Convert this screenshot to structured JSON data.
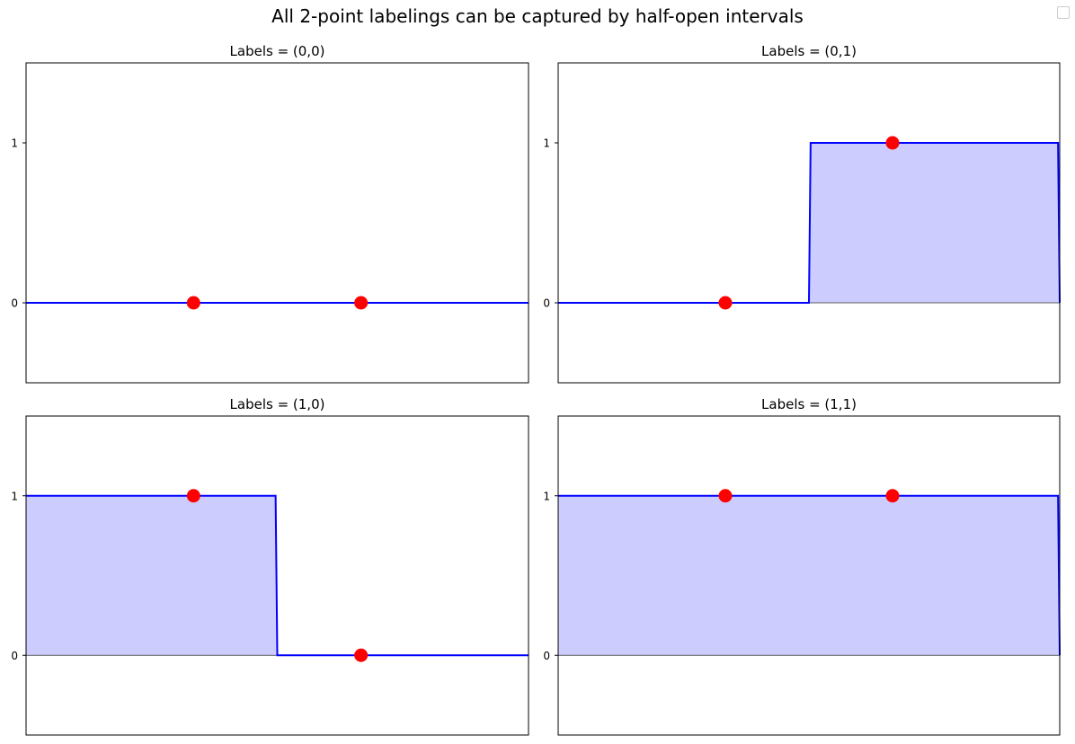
{
  "figure": {
    "title": "All 2-point labelings can be captured by half-open intervals"
  },
  "colors": {
    "line": "#0000ff",
    "fill": "#ccccff",
    "point": "#ff0000",
    "axis": "#000000",
    "text": "#000000"
  },
  "chart_data": [
    {
      "type": "line",
      "title": "Labels = (0,0)",
      "xlim": [
        0,
        3
      ],
      "ylim": [
        -0.5,
        1.5
      ],
      "yticks": [
        0,
        1
      ],
      "ytick_labels": [
        "0",
        "1"
      ],
      "xticks": [],
      "step_line": {
        "x": [
          0,
          1.5,
          1.5,
          3
        ],
        "y": [
          0,
          0,
          0,
          0
        ]
      },
      "shaded": false,
      "points": {
        "x": [
          1,
          2
        ],
        "y": [
          0,
          0
        ]
      }
    },
    {
      "type": "line",
      "title": "Labels = (0,1)",
      "xlim": [
        0,
        3
      ],
      "ylim": [
        -0.5,
        1.5
      ],
      "yticks": [
        0,
        1
      ],
      "ytick_labels": [
        "0",
        "1"
      ],
      "xticks": [],
      "step_line": {
        "x": [
          0,
          1.5,
          1.51,
          2.99,
          3
        ],
        "y": [
          0,
          0,
          1,
          1,
          0
        ]
      },
      "shaded": true,
      "points": {
        "x": [
          1,
          2
        ],
        "y": [
          0,
          1
        ]
      }
    },
    {
      "type": "line",
      "title": "Labels = (1,0)",
      "xlim": [
        0,
        3
      ],
      "ylim": [
        -0.5,
        1.5
      ],
      "yticks": [
        0,
        1
      ],
      "ytick_labels": [
        "0",
        "1"
      ],
      "xticks": [],
      "step_line": {
        "x": [
          0,
          1.49,
          1.5,
          3
        ],
        "y": [
          1,
          1,
          0,
          0
        ]
      },
      "shaded": true,
      "points": {
        "x": [
          1,
          2
        ],
        "y": [
          1,
          0
        ]
      }
    },
    {
      "type": "line",
      "title": "Labels = (1,1)",
      "xlim": [
        0,
        3
      ],
      "ylim": [
        -0.5,
        1.5
      ],
      "yticks": [
        0,
        1
      ],
      "ytick_labels": [
        "0",
        "1"
      ],
      "xticks": [],
      "step_line": {
        "x": [
          0,
          2.99,
          3
        ],
        "y": [
          1,
          1,
          0
        ]
      },
      "shaded": true,
      "points": {
        "x": [
          1,
          2
        ],
        "y": [
          1,
          1
        ]
      }
    }
  ]
}
